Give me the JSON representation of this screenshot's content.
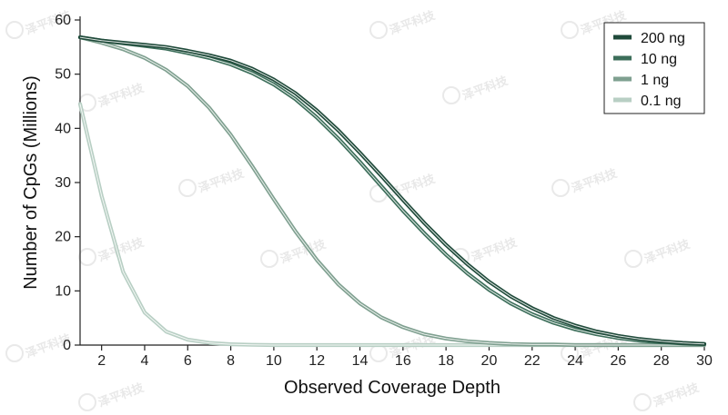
{
  "watermark": "泽平科技",
  "chart_data": {
    "type": "line",
    "xlabel": "Observed Coverage Depth",
    "ylabel": "Number of CpGs (Millions)",
    "xlim": [
      1,
      30
    ],
    "ylim": [
      0,
      60
    ],
    "xticks": [
      2,
      4,
      6,
      8,
      10,
      12,
      14,
      16,
      18,
      20,
      22,
      24,
      26,
      28,
      30
    ],
    "yticks": [
      0,
      10,
      20,
      30,
      40,
      50,
      60
    ],
    "grid": false,
    "legend_position": "top-right",
    "x": [
      1,
      2,
      3,
      4,
      5,
      6,
      7,
      8,
      9,
      10,
      11,
      12,
      13,
      14,
      15,
      16,
      17,
      18,
      19,
      20,
      21,
      22,
      23,
      24,
      25,
      26,
      27,
      28,
      29,
      30
    ],
    "series": [
      {
        "name": "200 ng",
        "color": "#1f4a3a",
        "values": [
          56.8,
          56.2,
          55.8,
          55.4,
          55.0,
          54.3,
          53.5,
          52.5,
          51.0,
          49.0,
          46.5,
          43.3,
          39.6,
          35.5,
          31.2,
          26.8,
          22.5,
          18.5,
          14.9,
          11.7,
          9.0,
          6.8,
          5.0,
          3.6,
          2.5,
          1.7,
          1.1,
          0.7,
          0.4,
          0.2
        ]
      },
      {
        "name": "10 ng",
        "color": "#3c6e5a",
        "values": [
          56.8,
          56.2,
          55.7,
          55.2,
          54.7,
          53.9,
          53.0,
          51.8,
          50.2,
          48.1,
          45.4,
          42.0,
          38.1,
          33.8,
          29.3,
          24.8,
          20.6,
          16.7,
          13.2,
          10.2,
          7.7,
          5.7,
          4.1,
          2.9,
          2.0,
          1.3,
          0.8,
          0.5,
          0.3,
          0.2
        ]
      },
      {
        "name": "1 ng",
        "color": "#7fa090",
        "values": [
          56.8,
          55.8,
          54.6,
          53.0,
          50.8,
          47.8,
          43.8,
          38.8,
          33.0,
          26.9,
          21.0,
          15.7,
          11.2,
          7.7,
          5.1,
          3.3,
          2.0,
          1.2,
          0.7,
          0.4,
          0.2,
          0.1,
          0.1,
          0,
          0,
          0,
          0,
          0,
          0,
          0
        ]
      },
      {
        "name": "0.1 ng",
        "color": "#b8cfc4",
        "values": [
          44.5,
          27.5,
          13.5,
          6.0,
          2.5,
          1.0,
          0.4,
          0.15,
          0.05,
          0,
          0,
          0,
          0,
          0,
          0,
          0,
          0,
          0,
          0,
          0,
          0,
          0,
          0,
          0,
          0,
          0,
          0,
          0,
          0,
          0
        ]
      }
    ]
  }
}
